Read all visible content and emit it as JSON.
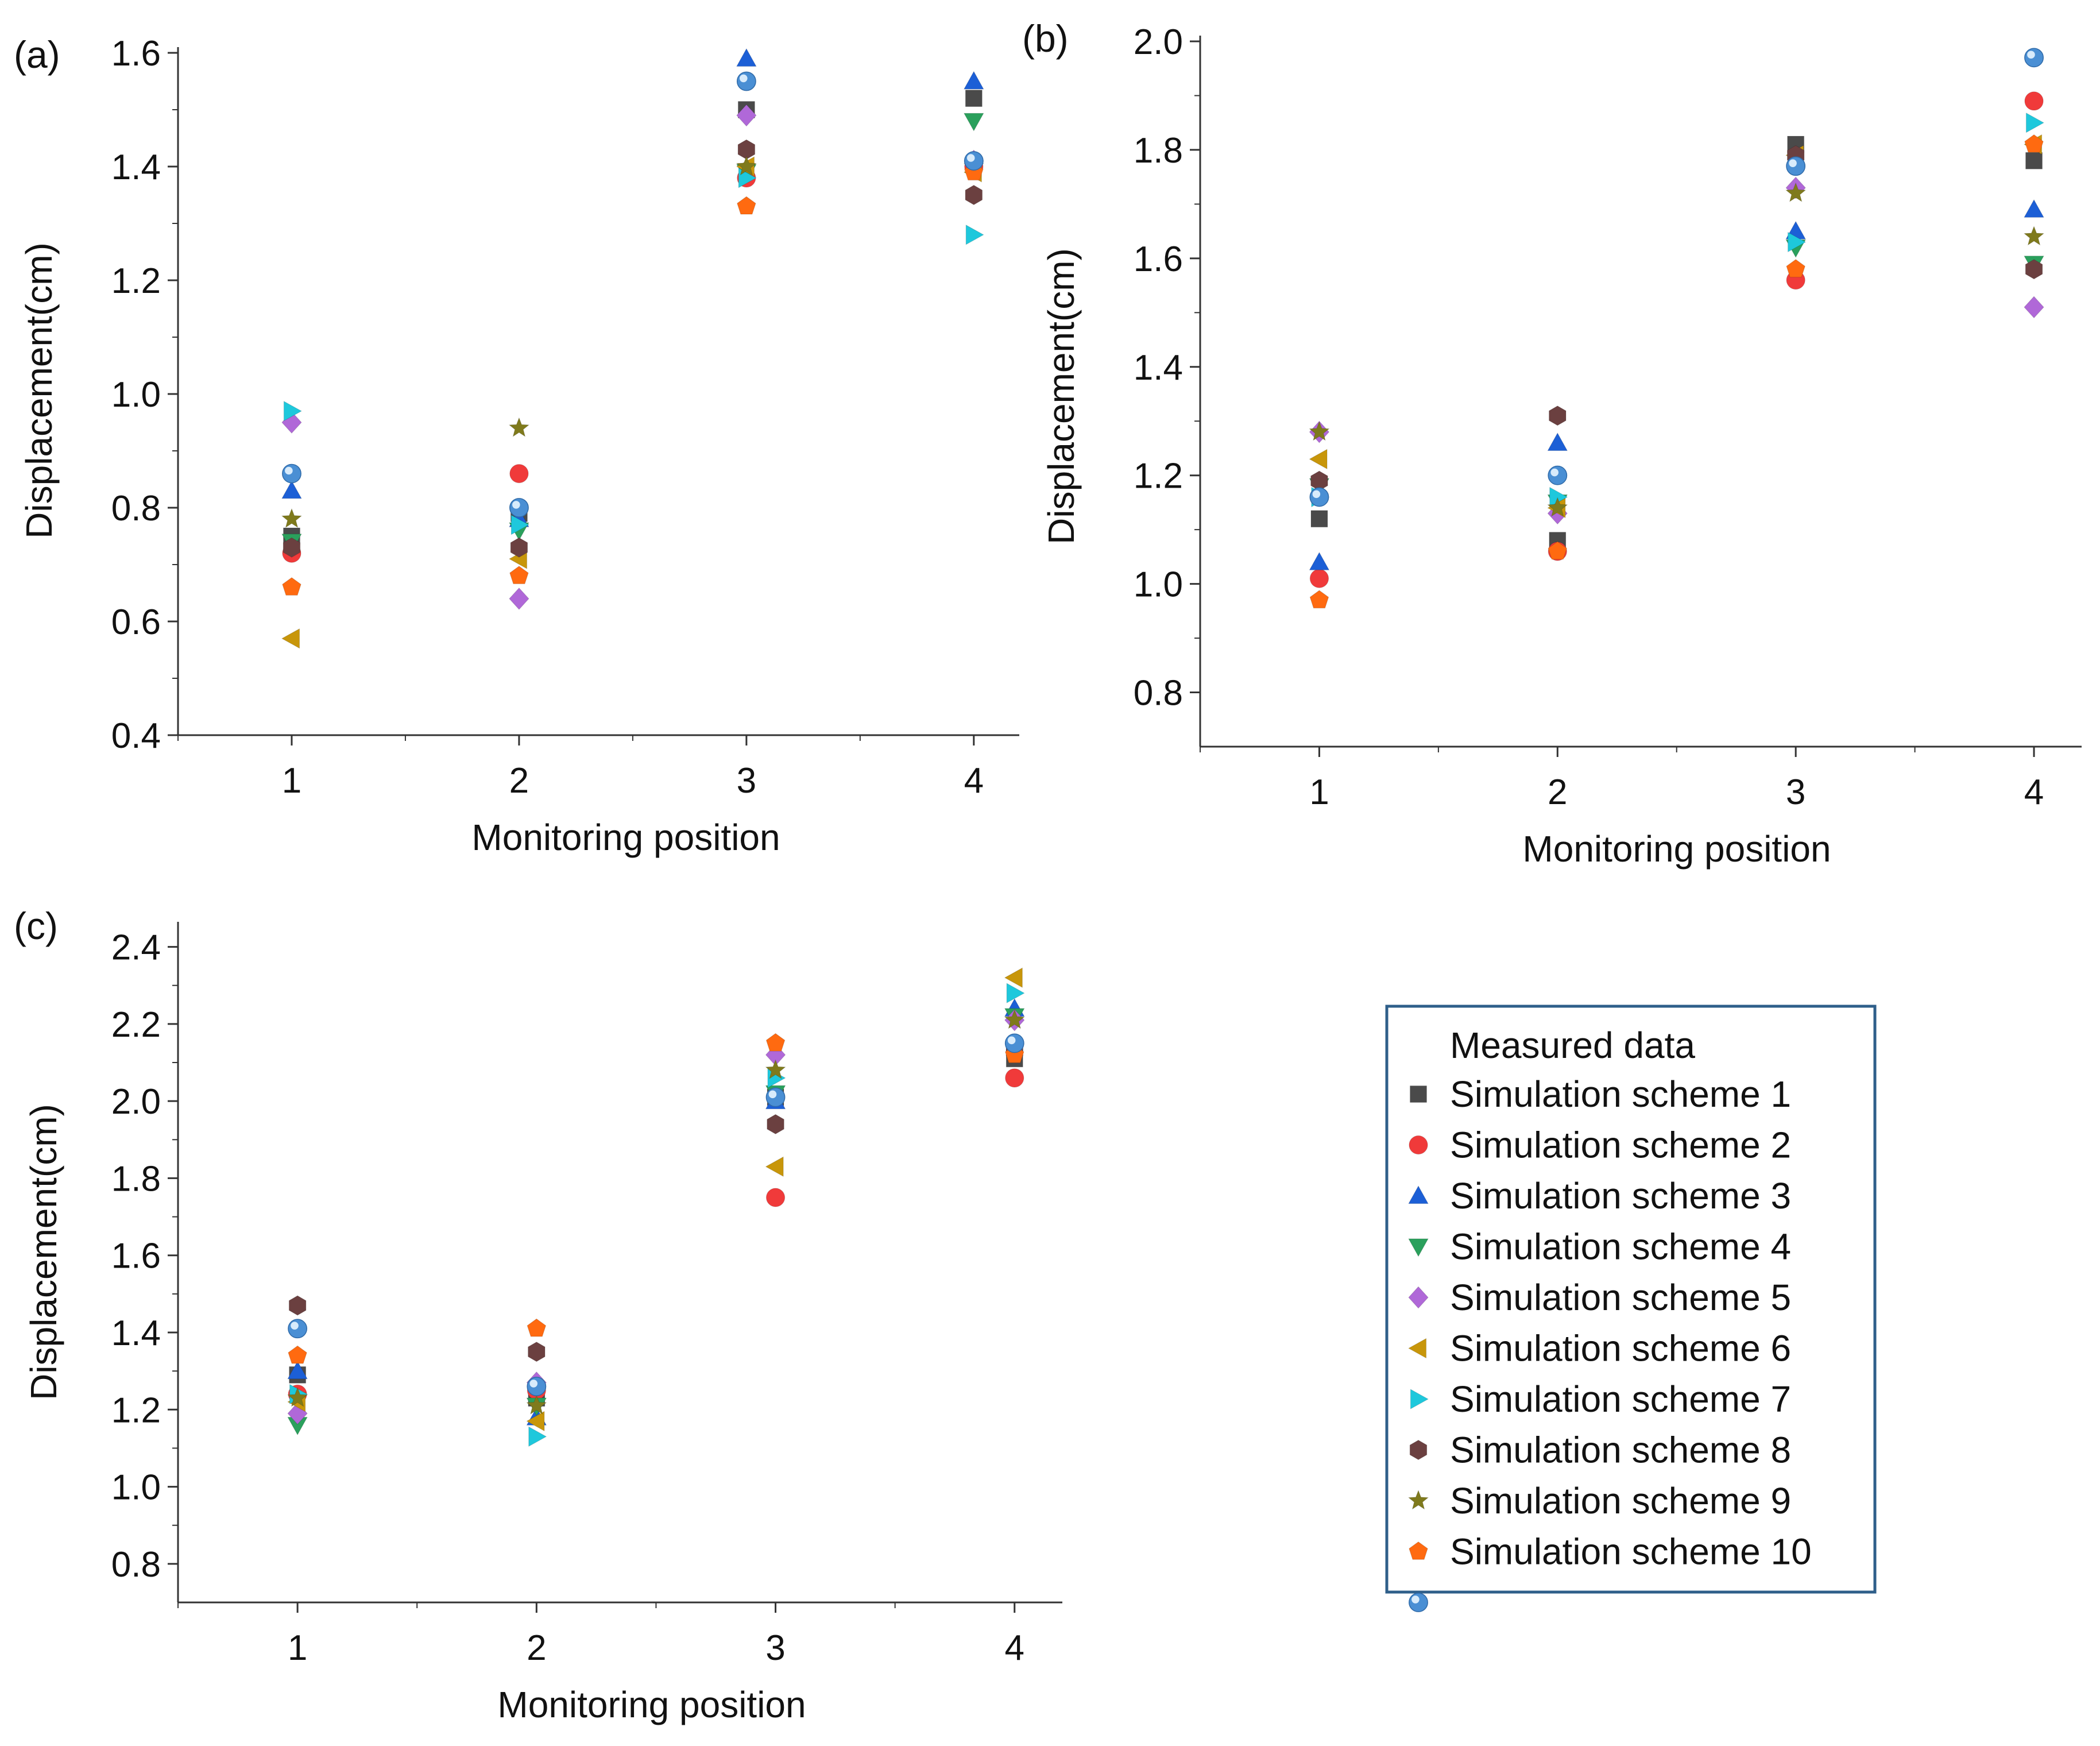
{
  "series_styles": [
    {
      "name": "Simulation scheme 1",
      "marker": "square",
      "color": "#4a4a4a"
    },
    {
      "name": "Simulation scheme 2",
      "marker": "circle",
      "color": "#f03a3a"
    },
    {
      "name": "Simulation scheme 3",
      "marker": "triangle-up",
      "color": "#1c5fd6"
    },
    {
      "name": "Simulation scheme 4",
      "marker": "triangle-down",
      "color": "#2aa05c"
    },
    {
      "name": "Simulation scheme 5",
      "marker": "diamond",
      "color": "#b068d8"
    },
    {
      "name": "Simulation scheme 6",
      "marker": "triangle-left",
      "color": "#c8960a"
    },
    {
      "name": "Simulation scheme 7",
      "marker": "triangle-right",
      "color": "#1ec8dc"
    },
    {
      "name": "Simulation scheme 8",
      "marker": "hexagon",
      "color": "#6b4040"
    },
    {
      "name": "Simulation scheme 9",
      "marker": "star",
      "color": "#7f7a1c"
    },
    {
      "name": "Simulation scheme 10",
      "marker": "pentagon",
      "color": "#ff6a10"
    },
    {
      "name": "Measured data",
      "marker": "sphere",
      "color": "#4a8fd4"
    }
  ],
  "legend": {
    "title": "Measured data",
    "entries": [
      {
        "label": "Simulation scheme 1",
        "marker": "square",
        "color": "#4a4a4a"
      },
      {
        "label": "Simulation scheme 2",
        "marker": "circle",
        "color": "#f03a3a"
      },
      {
        "label": "Simulation scheme 3",
        "marker": "triangle-up",
        "color": "#1c5fd6"
      },
      {
        "label": "Simulation scheme 4",
        "marker": "triangle-down",
        "color": "#2aa05c"
      },
      {
        "label": "Simulation scheme 5",
        "marker": "diamond",
        "color": "#b068d8"
      },
      {
        "label": "Simulation scheme 6",
        "marker": "triangle-left",
        "color": "#c8960a"
      },
      {
        "label": "Simulation scheme 7",
        "marker": "triangle-right",
        "color": "#1ec8dc"
      },
      {
        "label": "Simulation scheme 8",
        "marker": "hexagon",
        "color": "#6b4040"
      },
      {
        "label": "Simulation scheme 9",
        "marker": "star",
        "color": "#7f7a1c"
      },
      {
        "label": "Simulation scheme 10",
        "marker": "pentagon",
        "color": "#ff6a10"
      },
      {
        "label": "",
        "marker": "sphere",
        "color": "#4a8fd4"
      }
    ],
    "border_color": "#2f5f8a"
  },
  "chart_data": [
    {
      "panel": "(a)",
      "type": "scatter",
      "xlabel": "Monitoring position",
      "ylabel": "Displacement(cm)",
      "xlim": [
        0.5,
        4.2
      ],
      "ylim": [
        0.4,
        1.6
      ],
      "xticks": [
        "1",
        "2",
        "3",
        "4"
      ],
      "yticks": [
        "0.4",
        "0.6",
        "0.8",
        "1.0",
        "1.2",
        "1.4",
        "1.6"
      ],
      "x": [
        1,
        2,
        3,
        4
      ],
      "series": [
        {
          "name": "Simulation scheme 1",
          "values": [
            0.75,
            0.79,
            1.5,
            1.52
          ]
        },
        {
          "name": "Simulation scheme 2",
          "values": [
            0.72,
            0.86,
            1.38,
            1.4
          ]
        },
        {
          "name": "Simulation scheme 3",
          "values": [
            0.83,
            0.78,
            1.59,
            1.55
          ]
        },
        {
          "name": "Simulation scheme 4",
          "values": [
            0.74,
            0.76,
            1.39,
            1.48
          ]
        },
        {
          "name": "Simulation scheme 5",
          "values": [
            0.95,
            0.64,
            1.49,
            1.41
          ]
        },
        {
          "name": "Simulation scheme 6",
          "values": [
            0.57,
            0.71,
            1.4,
            1.39
          ]
        },
        {
          "name": "Simulation scheme 7",
          "values": [
            0.97,
            0.77,
            1.38,
            1.28
          ]
        },
        {
          "name": "Simulation scheme 8",
          "values": [
            0.73,
            0.73,
            1.43,
            1.35
          ]
        },
        {
          "name": "Simulation scheme 9",
          "values": [
            0.78,
            0.94,
            1.4,
            1.4
          ]
        },
        {
          "name": "Simulation scheme 10",
          "values": [
            0.66,
            0.68,
            1.33,
            1.39
          ]
        },
        {
          "name": "Measured data",
          "values": [
            0.86,
            0.8,
            1.55,
            1.41
          ]
        }
      ]
    },
    {
      "panel": "(b)",
      "type": "scatter",
      "xlabel": "Monitoring position",
      "ylabel": "Displacement(cm)",
      "xlim": [
        0.5,
        4.2
      ],
      "ylim": [
        0.7,
        2.0
      ],
      "xticks": [
        "1",
        "2",
        "3",
        "4"
      ],
      "yticks": [
        "0.8",
        "1.0",
        "1.2",
        "1.4",
        "1.6",
        "1.8",
        "2.0"
      ],
      "x": [
        1,
        2,
        3,
        4
      ],
      "series": [
        {
          "name": "Simulation scheme 1",
          "values": [
            1.12,
            1.08,
            1.81,
            1.78
          ]
        },
        {
          "name": "Simulation scheme 2",
          "values": [
            1.01,
            1.06,
            1.56,
            1.89
          ]
        },
        {
          "name": "Simulation scheme 3",
          "values": [
            1.04,
            1.26,
            1.65,
            1.69
          ]
        },
        {
          "name": "Simulation scheme 4",
          "values": [
            1.18,
            1.15,
            1.62,
            1.59
          ]
        },
        {
          "name": "Simulation scheme 5",
          "values": [
            1.28,
            1.13,
            1.73,
            1.51
          ]
        },
        {
          "name": "Simulation scheme 6",
          "values": [
            1.23,
            1.14,
            1.79,
            1.81
          ]
        },
        {
          "name": "Simulation scheme 7",
          "values": [
            1.16,
            1.16,
            1.63,
            1.85
          ]
        },
        {
          "name": "Simulation scheme 8",
          "values": [
            1.19,
            1.31,
            1.79,
            1.58
          ]
        },
        {
          "name": "Simulation scheme 9",
          "values": [
            1.28,
            1.14,
            1.72,
            1.64
          ]
        },
        {
          "name": "Simulation scheme 10",
          "values": [
            0.97,
            1.06,
            1.58,
            1.81
          ]
        },
        {
          "name": "Measured data",
          "values": [
            1.16,
            1.2,
            1.77,
            1.97
          ]
        }
      ]
    },
    {
      "panel": "(c)",
      "type": "scatter",
      "xlabel": "Monitoring position",
      "ylabel": "Displacement(cm)",
      "xlim": [
        0.5,
        4.2
      ],
      "ylim": [
        0.7,
        2.45
      ],
      "xticks": [
        "1",
        "2",
        "3",
        "4"
      ],
      "yticks": [
        "0.8",
        "1.0",
        "1.2",
        "1.4",
        "1.6",
        "1.8",
        "2.0",
        "2.2",
        "2.4"
      ],
      "x": [
        1,
        2,
        3,
        4
      ],
      "series": [
        {
          "name": "Simulation scheme 1",
          "values": [
            1.29,
            1.23,
            2.01,
            2.11
          ]
        },
        {
          "name": "Simulation scheme 2",
          "values": [
            1.24,
            1.25,
            1.75,
            2.06
          ]
        },
        {
          "name": "Simulation scheme 3",
          "values": [
            1.3,
            1.18,
            2.0,
            2.24
          ]
        },
        {
          "name": "Simulation scheme 4",
          "values": [
            1.16,
            1.21,
            2.02,
            2.22
          ]
        },
        {
          "name": "Simulation scheme 5",
          "values": [
            1.19,
            1.27,
            2.12,
            2.21
          ]
        },
        {
          "name": "Simulation scheme 6",
          "values": [
            1.22,
            1.17,
            1.83,
            2.32
          ]
        },
        {
          "name": "Simulation scheme 7",
          "values": [
            1.24,
            1.13,
            2.06,
            2.28
          ]
        },
        {
          "name": "Simulation scheme 8",
          "values": [
            1.47,
            1.35,
            1.94,
            2.13
          ]
        },
        {
          "name": "Simulation scheme 9",
          "values": [
            1.23,
            1.21,
            2.08,
            2.21
          ]
        },
        {
          "name": "Simulation scheme 10",
          "values": [
            1.34,
            1.41,
            2.15,
            2.12
          ]
        },
        {
          "name": "Measured data",
          "values": [
            1.41,
            1.26,
            2.01,
            2.15
          ]
        }
      ]
    }
  ]
}
